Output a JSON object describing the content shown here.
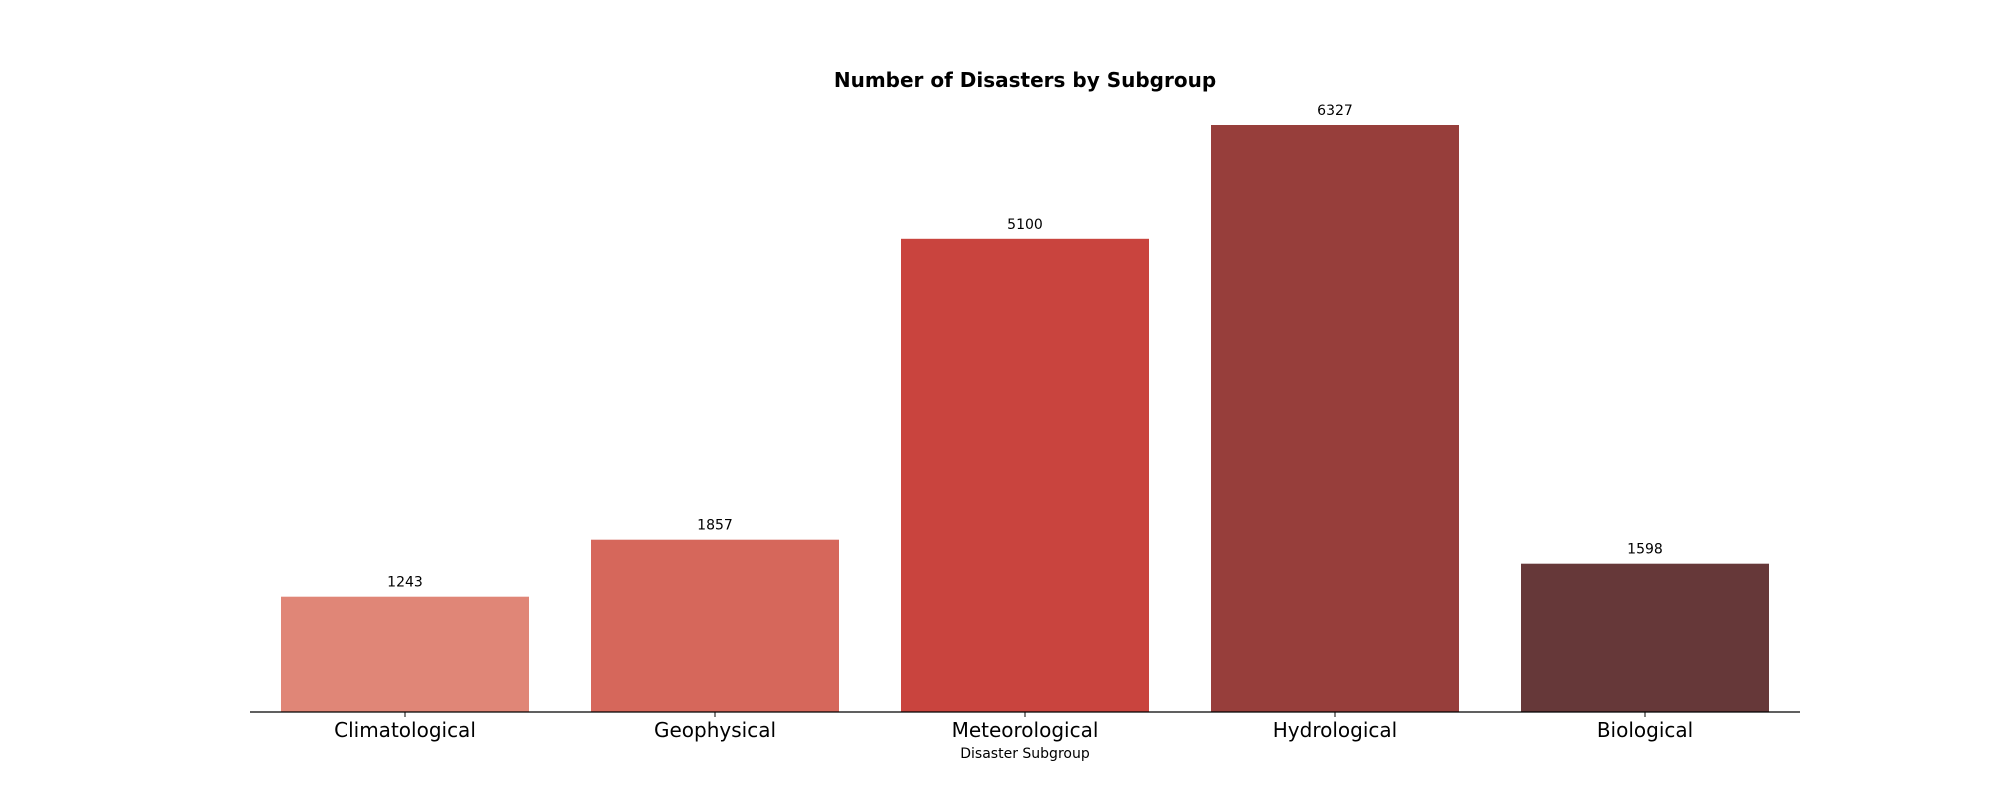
{
  "chart_data": {
    "type": "bar",
    "title": "Number of Disasters by Subgroup",
    "xlabel": "Disaster Subgroup",
    "ylabel": "",
    "categories": [
      "Climatological",
      "Geophysical",
      "Meteorological",
      "Hydrological",
      "Biological"
    ],
    "values": [
      1243,
      1857,
      5100,
      6327,
      1598
    ],
    "colors": [
      "#e08677",
      "#d6675b",
      "#c9443e",
      "#973e3b",
      "#663839"
    ],
    "ylim": [
      0,
      6327
    ],
    "grid": false,
    "legend": "none",
    "y_axis_visible": false
  }
}
